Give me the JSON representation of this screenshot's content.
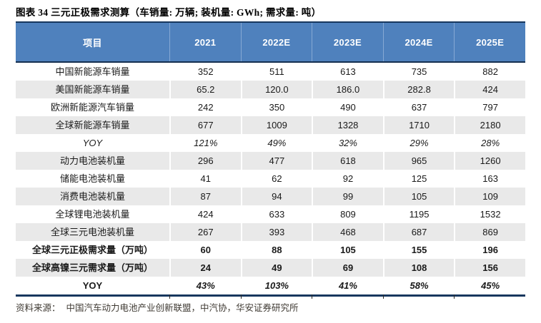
{
  "title": "图表 34 三元正极需求测算（车销量: 万辆; 装机量: GWh; 需求量: 吨）",
  "table": {
    "columns": [
      "项目",
      "2021",
      "2022E",
      "2023E",
      "2024E",
      "2025E"
    ],
    "rows": [
      {
        "label": "中国新能源车销量",
        "values": [
          "352",
          "511",
          "613",
          "735",
          "882"
        ]
      },
      {
        "label": "美国新能源车销量",
        "values": [
          "65.2",
          "120.0",
          "186.0",
          "282.8",
          "424"
        ]
      },
      {
        "label": "欧洲新能源汽车销量",
        "values": [
          "242",
          "350",
          "490",
          "637",
          "797"
        ]
      },
      {
        "label": "全球新能源车销量",
        "values": [
          "677",
          "1009",
          "1328",
          "1710",
          "2180"
        ]
      },
      {
        "label": "YOY",
        "values": [
          "121%",
          "49%",
          "32%",
          "29%",
          "28%"
        ]
      },
      {
        "label": "动力电池装机量",
        "values": [
          "296",
          "477",
          "618",
          "965",
          "1260"
        ]
      },
      {
        "label": "储能电池装机量",
        "values": [
          "41",
          "62",
          "92",
          "125",
          "163"
        ]
      },
      {
        "label": "消费电池装机量",
        "values": [
          "87",
          "94",
          "99",
          "105",
          "109"
        ]
      },
      {
        "label": "全球锂电池装机量",
        "values": [
          "424",
          "633",
          "809",
          "1195",
          "1532"
        ]
      },
      {
        "label": "全球三元电池装机量",
        "values": [
          "267",
          "393",
          "468",
          "687",
          "869"
        ]
      },
      {
        "label": "全球三元正极需求量（万吨）",
        "values": [
          "60",
          "88",
          "105",
          "155",
          "196"
        ]
      },
      {
        "label": "全球高镍三元需求量（万吨）",
        "values": [
          "24",
          "49",
          "69",
          "108",
          "156"
        ]
      },
      {
        "label": "YOY",
        "values": [
          "43%",
          "103%",
          "41%",
          "58%",
          "45%"
        ]
      }
    ]
  },
  "source": {
    "label": "资料来源：",
    "text": "中国汽车动力电池产业创新联盟，中汽协，华安证券研究所"
  },
  "colors": {
    "header_bg": "#4f81bd",
    "header_text": "#ffffff",
    "stripe": "#e9e9e9",
    "border_dark": "#17375e"
  }
}
